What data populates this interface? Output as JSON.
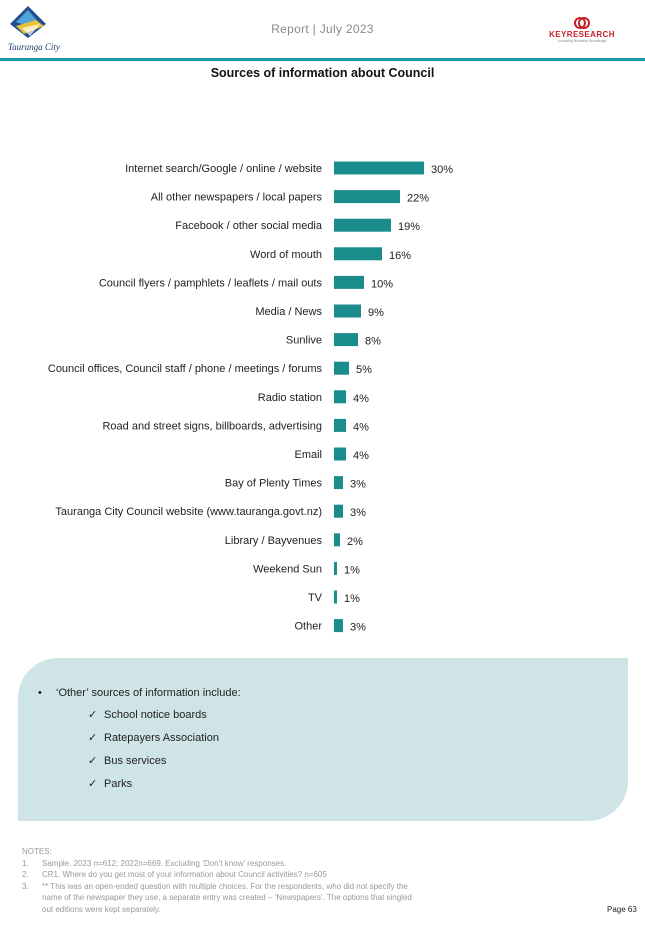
{
  "header": {
    "logo_left_text": "Tauranga City",
    "report_title": "Report | July 2023",
    "logo_right_text": "KEYRESEARCH",
    "logo_right_tagline": "Unlocking Business Knowledge"
  },
  "colors": {
    "accent": "#1a9aa0",
    "bar": "#1b8c8c",
    "panel": "#cfe4e6",
    "logo_red": "#c81e2b"
  },
  "chart_data": {
    "type": "bar",
    "orientation": "horizontal",
    "title": "Sources of information about Council",
    "categories": [
      "Internet search/Google / online / website",
      "All other newspapers / local papers",
      "Facebook / other social media",
      "Word of mouth",
      "Council flyers / pamphlets / leaflets / mail outs",
      "Media / News",
      "Sunlive",
      "Council offices, Council staff / phone / meetings / forums",
      "Radio station",
      "Road and street signs, billboards, advertising",
      "Email",
      "Bay of Plenty Times",
      "Tauranga City Council website (www.tauranga.govt.nz)",
      "Library / Bayvenues",
      "Weekend Sun",
      "TV",
      "Other"
    ],
    "values": [
      30,
      22,
      19,
      16,
      10,
      9,
      8,
      5,
      4,
      4,
      4,
      3,
      3,
      2,
      1,
      1,
      3
    ],
    "value_labels": [
      "30%",
      "22%",
      "19%",
      "16%",
      "10%",
      "9%",
      "8%",
      "5%",
      "4%",
      "4%",
      "4%",
      "3%",
      "3%",
      "2%",
      "1%",
      "1%",
      "3%"
    ],
    "xlim": [
      0,
      30
    ],
    "grid": false,
    "legend": "none"
  },
  "other_sources": {
    "intro": "‘Other’ sources of information include:",
    "bullet": "•",
    "check": "✓",
    "items": [
      "School notice boards",
      "Ratepayers Association",
      "Bus services",
      "Parks"
    ]
  },
  "notes": {
    "heading": "NOTES:",
    "items": [
      {
        "num": "1.",
        "text": "Sample. 2023 n=612; 2022n=669. Excluding ‘Don’t know’ responses."
      },
      {
        "num": "2.",
        "text": "CR1. Where do you get most of your information about Council activities? n=605"
      },
      {
        "num": "3.",
        "text": "** This was an open-ended question with multiple choices. For the respondents, who did not specify the name of the newspaper they use, a separate entry was created – ‘Newspapers’. The options that singled out editions were kept separately."
      }
    ]
  },
  "page": {
    "number": "Page 63"
  }
}
